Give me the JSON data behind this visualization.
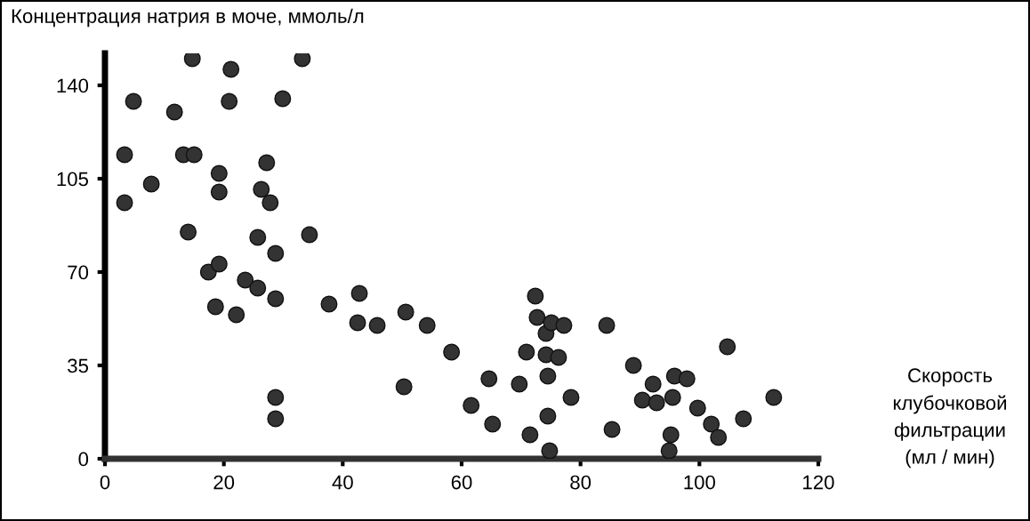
{
  "chart_data": {
    "type": "scatter",
    "ylabel": "Концентрация натрия в моче, ммоль/л",
    "xlabel": "Скорость\nклубочковой\nфильтрации\n(мл / мин)",
    "x": [
      3.3,
      3.3,
      4.8,
      7.8,
      11.7,
      13.2,
      15,
      14,
      14.7,
      17.4,
      19.2,
      19.2,
      19.2,
      18.6,
      21.2,
      20.9,
      22.1,
      23.6,
      25.7,
      25.7,
      26.3,
      27.2,
      27.8,
      28.7,
      28.7,
      28.7,
      28.7,
      29.9,
      33.2,
      34.4,
      37.7,
      42.8,
      42.5,
      45.8,
      50.6,
      50.3,
      54.2,
      58.3,
      61.6,
      64.6,
      65.2,
      69.7,
      70.9,
      71.5,
      72.4,
      72.7,
      74.2,
      74.5,
      74.2,
      74.5,
      74.8,
      75.1,
      76.3,
      77.2,
      78.4,
      84.4,
      85.3,
      88.9,
      90.4,
      92.2,
      92.8,
      94.9,
      95.2,
      95.8,
      95.5,
      97.9,
      99.7,
      102,
      103.2,
      104.7,
      107.4,
      112.5
    ],
    "values": [
      114,
      96,
      134,
      103,
      130,
      114,
      114,
      85,
      150,
      70,
      73,
      107,
      100,
      57,
      146,
      134,
      54,
      67,
      64,
      83,
      101,
      111,
      96,
      77,
      60,
      23,
      15,
      135,
      150,
      84,
      58,
      62,
      51,
      50,
      55,
      27,
      50,
      40,
      20,
      30,
      13,
      28,
      40,
      9,
      61,
      53,
      47,
      31,
      39,
      16,
      3,
      51,
      38,
      50,
      23,
      50,
      11,
      35,
      22,
      28,
      21,
      3,
      9,
      31,
      23,
      30,
      19,
      13,
      8,
      42,
      15,
      23
    ],
    "color": "#333333",
    "marker": "circle",
    "xlim": [
      0,
      120
    ],
    "xticks": [
      0,
      20,
      40,
      60,
      80,
      100,
      120
    ],
    "ylim": [
      0,
      152
    ],
    "yticks": [
      0,
      35,
      70,
      105,
      140
    ],
    "grid": false
  }
}
